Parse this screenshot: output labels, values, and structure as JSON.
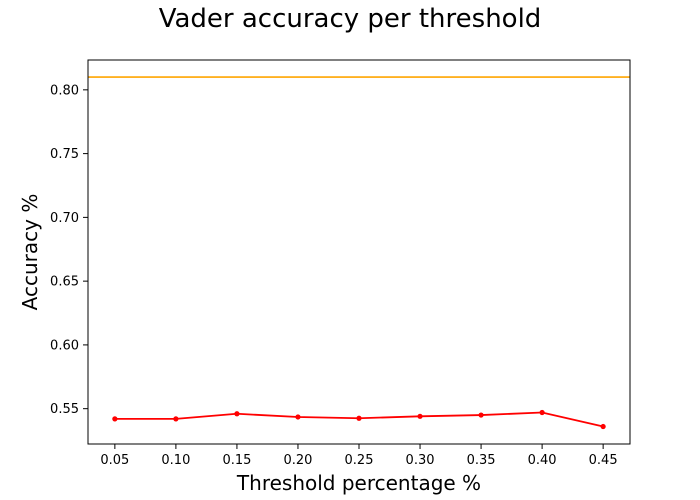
{
  "chart_data": {
    "type": "line",
    "title": "Vader accuracy per threshold",
    "xlabel": "Threshold percentage %",
    "ylabel": "Accuracy %",
    "x": [
      0.05,
      0.1,
      0.15,
      0.2,
      0.25,
      0.3,
      0.35,
      0.4,
      0.45
    ],
    "x_tick_labels": [
      "0.05",
      "0.10",
      "0.15",
      "0.20",
      "0.25",
      "0.30",
      "0.35",
      "0.40",
      "0.45"
    ],
    "y_ticks": [
      0.55,
      0.6,
      0.65,
      0.7,
      0.75,
      0.8
    ],
    "y_tick_labels": [
      "0.55",
      "0.60",
      "0.65",
      "0.70",
      "0.75",
      "0.80"
    ],
    "xlim": [
      0.028,
      0.472
    ],
    "ylim": [
      0.5223,
      0.8234
    ],
    "grid": false,
    "series": [
      {
        "color": "#ff0000",
        "marker": "circle",
        "values": [
          0.542,
          0.542,
          0.546,
          0.5435,
          0.5425,
          0.544,
          0.545,
          0.547,
          0.536
        ]
      }
    ],
    "reference_lines": [
      {
        "orientation": "horizontal",
        "value": 0.81,
        "color": "#ffa500"
      }
    ]
  }
}
